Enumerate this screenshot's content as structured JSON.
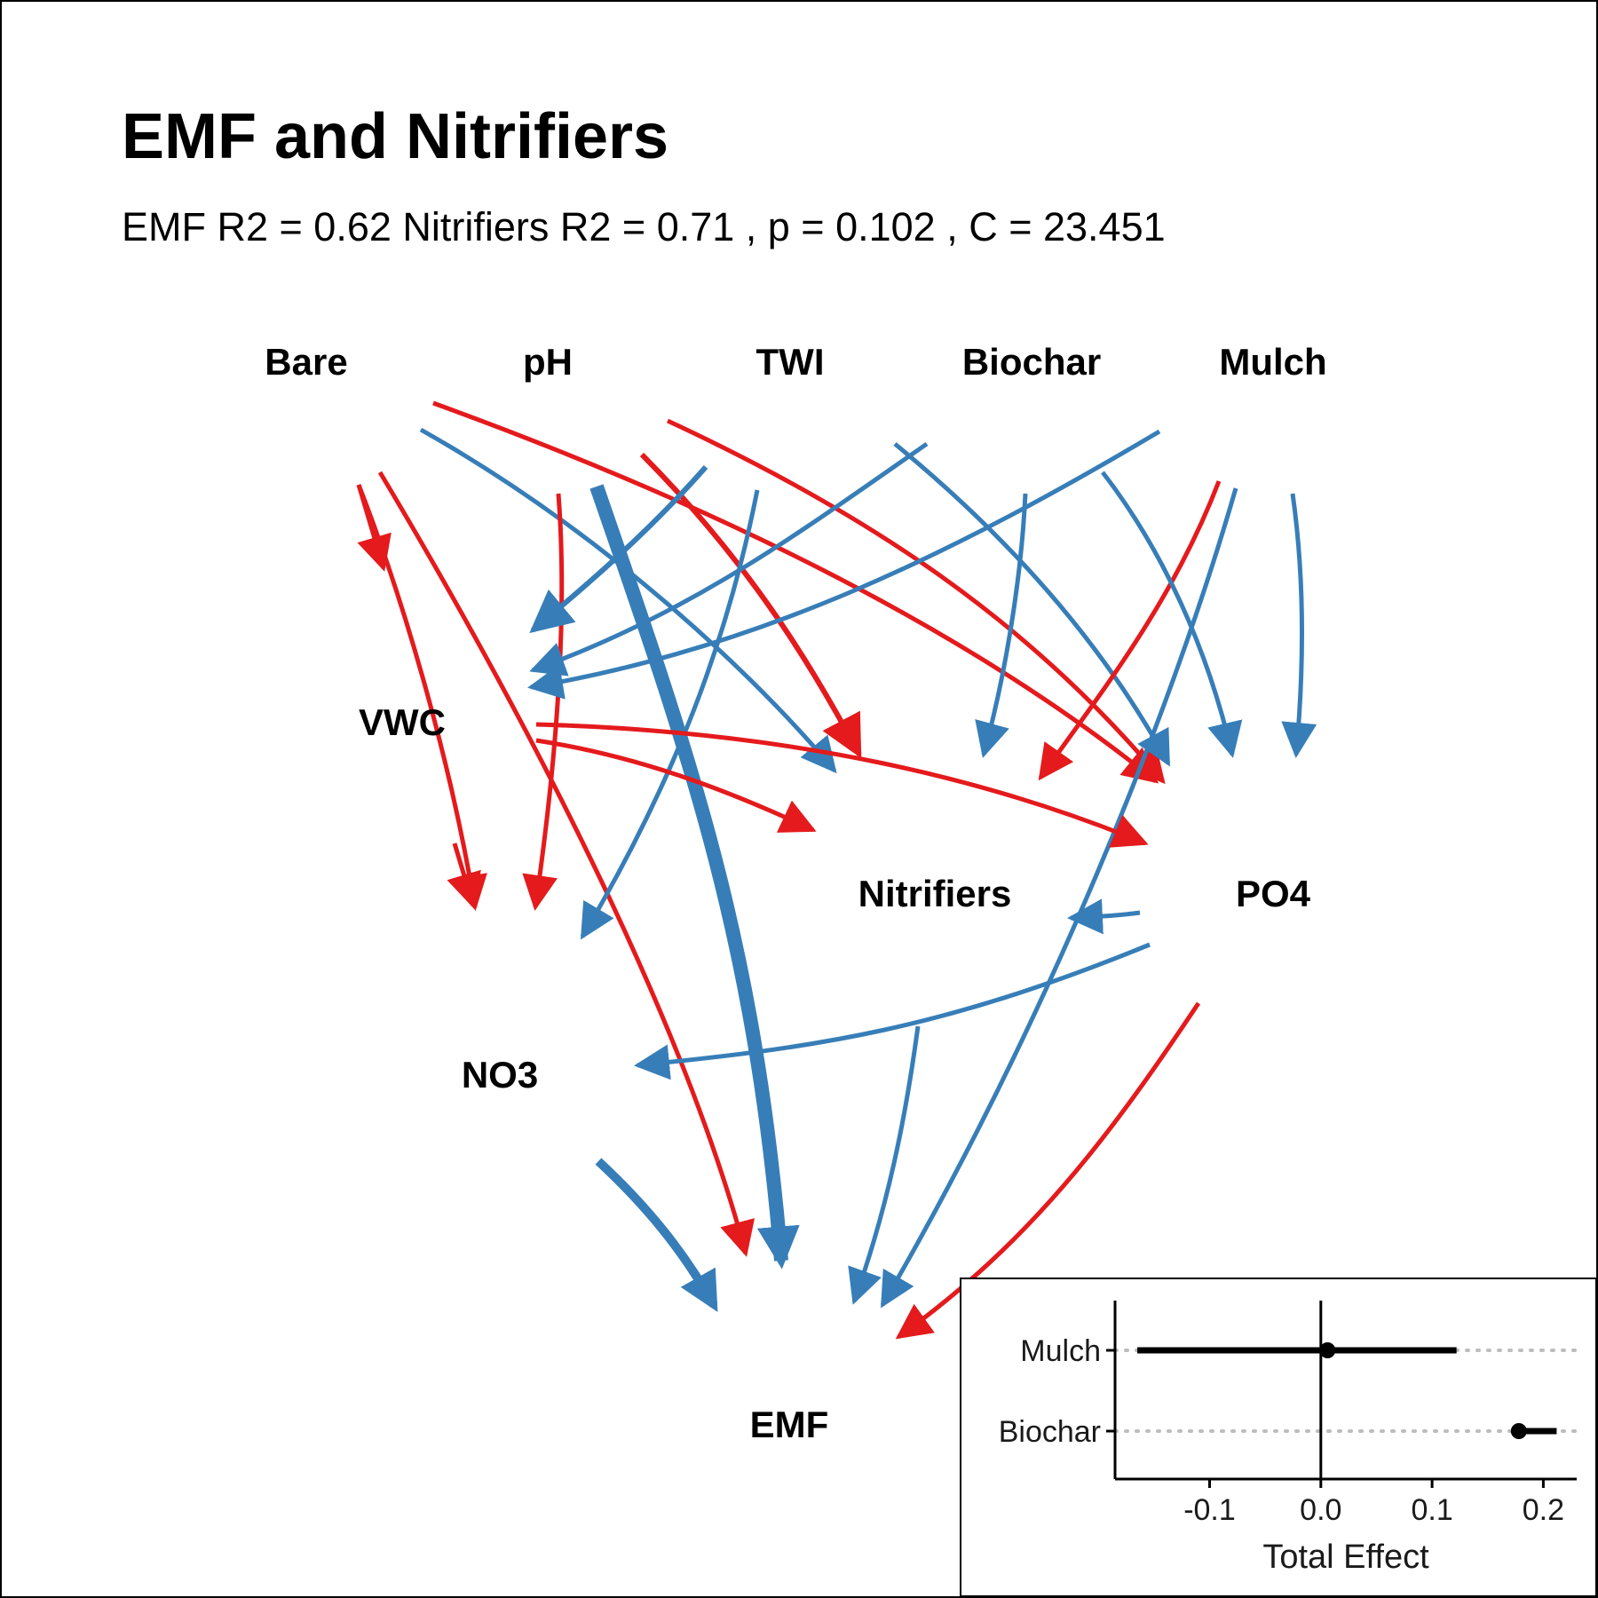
{
  "title": "EMF and Nitrifiers",
  "subtitle": "EMF R2 = 0.62 Nitrifiers R2 =  0.71 , p =  0.102 , C = 23.451",
  "colors": {
    "positive": "#e41a1c",
    "negative": "#377eb8",
    "border": "#000000"
  },
  "nodes": [
    {
      "id": "Bare",
      "label": "Bare"
    },
    {
      "id": "pH",
      "label": "pH"
    },
    {
      "id": "TWI",
      "label": "TWI"
    },
    {
      "id": "Biochar",
      "label": "Biochar"
    },
    {
      "id": "Mulch",
      "label": "Mulch"
    },
    {
      "id": "VWC",
      "label": "VWC"
    },
    {
      "id": "Nitrifiers",
      "label": "Nitrifiers"
    },
    {
      "id": "PO4",
      "label": "PO4"
    },
    {
      "id": "NO3",
      "label": "NO3"
    },
    {
      "id": "EMF",
      "label": "EMF"
    }
  ],
  "inset": {
    "type": "dot-whisker",
    "xlabel": "Total Effect",
    "xlim": [
      -0.185,
      0.23
    ],
    "xticks": [
      {
        "value": -0.1,
        "label": "-0.1"
      },
      {
        "value": 0.0,
        "label": "0.0"
      },
      {
        "value": 0.1,
        "label": "0.1"
      },
      {
        "value": 0.2,
        "label": "0.2"
      }
    ],
    "items": [
      {
        "label": "Mulch",
        "estimate": 0.006,
        "low": -0.165,
        "high": 0.122
      },
      {
        "label": "Biochar",
        "estimate": 0.178,
        "low": 0.178,
        "high": 0.212
      }
    ]
  }
}
